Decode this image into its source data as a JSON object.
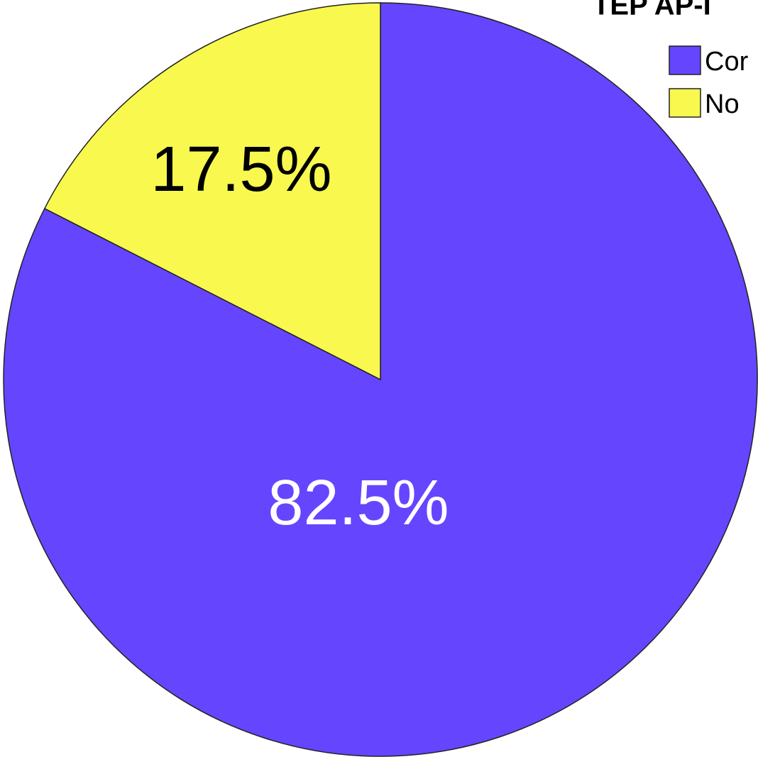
{
  "chart_data": {
    "type": "pie",
    "legend_title": "TEP AP-I",
    "categories": [
      "Cor",
      "No"
    ],
    "values": [
      82.5,
      17.5
    ],
    "value_labels": [
      "82.5%",
      "17.5%"
    ],
    "colors": [
      "#6645ff",
      "#f8f84f"
    ],
    "label_colors": [
      "#ffffff",
      "#000000"
    ],
    "legend": "upper right"
  }
}
